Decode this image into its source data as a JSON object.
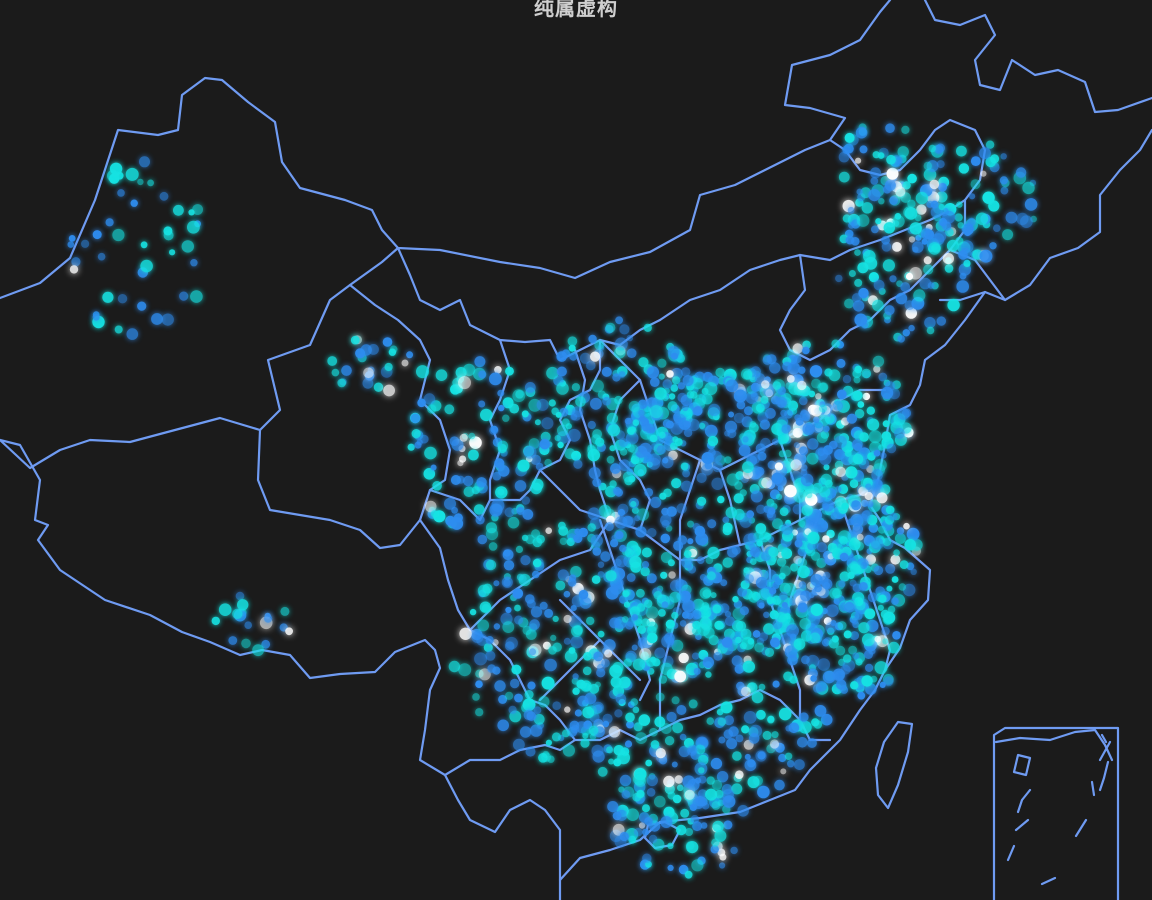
{
  "map": {
    "title": "纯属虚构",
    "background": "#1b1b1b",
    "border_color": "#6f9bf2",
    "point_colors": {
      "cyan": "#18e3e3",
      "blue": "#2f8df0",
      "white": "#ffffff"
    }
  }
}
